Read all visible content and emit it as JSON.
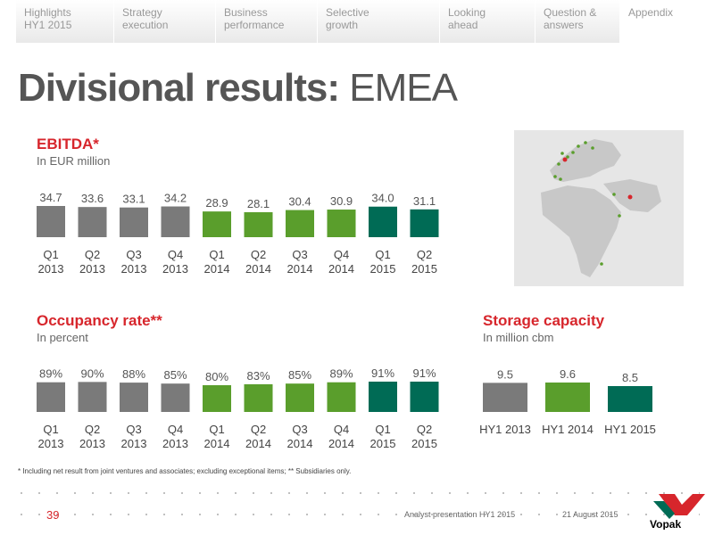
{
  "nav": {
    "tabs": [
      {
        "label": "Highlights\nHY1 2015"
      },
      {
        "label": "Strategy\nexecution"
      },
      {
        "label": "Business\nperformance"
      },
      {
        "label": "Selective\ngrowth"
      },
      {
        "label": "Looking\nahead"
      },
      {
        "label": "Question &\nanswers"
      },
      {
        "label": "Appendix"
      }
    ]
  },
  "page": {
    "title_bold": "Divisional results:",
    "title_light": "EMEA"
  },
  "ebitda": {
    "title": "EBITDA*",
    "subtitle": "In EUR million"
  },
  "occupancy": {
    "title": "Occupancy rate**",
    "subtitle": "In percent"
  },
  "storage": {
    "title": "Storage capacity",
    "subtitle": "In million cbm"
  },
  "colors": {
    "grey": "#7a7a7a",
    "green": "#5a9e2c",
    "teal": "#006b55",
    "red": "#d7262c"
  },
  "chart_data": [
    {
      "type": "bar",
      "id": "ebitda",
      "categories": [
        "Q1\n2013",
        "Q2\n2013",
        "Q3\n2013",
        "Q4\n2013",
        "Q1\n2014",
        "Q2\n2014",
        "Q3\n2014",
        "Q4\n2014",
        "Q1\n2015",
        "Q2\n2015"
      ],
      "values": [
        34.7,
        33.6,
        33.1,
        34.2,
        28.9,
        28.1,
        30.4,
        30.9,
        34.0,
        31.1
      ],
      "labels": [
        "34.7",
        "33.6",
        "33.1",
        "34.2",
        "28.9",
        "28.1",
        "30.4",
        "30.9",
        "34.0",
        "31.1"
      ],
      "colors": [
        "grey",
        "grey",
        "grey",
        "grey",
        "green",
        "green",
        "green",
        "green",
        "teal",
        "teal"
      ],
      "title": "EBITDA*",
      "ylabel": "In EUR million"
    },
    {
      "type": "bar",
      "id": "occupancy",
      "categories": [
        "Q1\n2013",
        "Q2\n2013",
        "Q3\n2013",
        "Q4\n2013",
        "Q1\n2014",
        "Q2\n2014",
        "Q3\n2014",
        "Q4\n2014",
        "Q1\n2015",
        "Q2\n2015"
      ],
      "values": [
        89,
        90,
        88,
        85,
        80,
        83,
        85,
        89,
        91,
        91
      ],
      "labels": [
        "89%",
        "90%",
        "88%",
        "85%",
        "80%",
        "83%",
        "85%",
        "89%",
        "91%",
        "91%"
      ],
      "colors": [
        "grey",
        "grey",
        "grey",
        "grey",
        "green",
        "green",
        "green",
        "green",
        "teal",
        "teal"
      ],
      "title": "Occupancy rate**",
      "ylabel": "In percent"
    },
    {
      "type": "bar",
      "id": "storage",
      "categories": [
        "HY1 2013",
        "HY1 2014",
        "HY1 2015"
      ],
      "values": [
        9.5,
        9.6,
        8.5
      ],
      "labels": [
        "9.5",
        "9.6",
        "8.5"
      ],
      "colors": [
        "grey",
        "green",
        "teal"
      ],
      "title": "Storage capacity",
      "ylabel": "In million cbm"
    }
  ],
  "footer": {
    "footnote": "* Including net result from joint ventures and associates; excluding exceptional items; ** Subsidiaries only.",
    "page_number": "39",
    "presentation": "Analyst presentation HY1 2015",
    "date": "21 August 2015",
    "logo_text": "Vopak"
  }
}
